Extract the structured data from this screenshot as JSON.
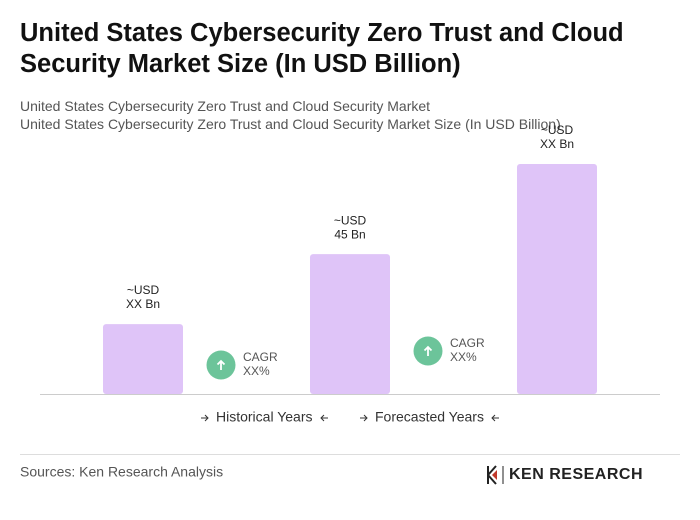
{
  "chart_data": {
    "type": "bar",
    "title": "United States Cybersecurity Zero Trust and Cloud Security Market Size (In USD Billion)",
    "subtitle": [
      "United States Cybersecurity Zero Trust and Cloud Security Market",
      "United States Cybersecurity Zero Trust and Cloud Security Market Size (In USD Billion)"
    ],
    "values": [
      22.5,
      45,
      74
    ],
    "value_labels": [
      [
        "~USD",
        "XX Bn"
      ],
      [
        "~USD",
        "45 Bn"
      ],
      [
        "~USD",
        "XX Bn"
      ]
    ],
    "color": "#dfc4f8",
    "annotations": [
      [
        "CAGR",
        "XX%"
      ],
      [
        "CAGR",
        "XX%"
      ]
    ],
    "legend": [
      "Historical Years",
      "Forecasted Years"
    ]
  },
  "footer": {
    "source": "Sources: Ken Research Analysis",
    "logo": "KEN RESEARCH"
  }
}
